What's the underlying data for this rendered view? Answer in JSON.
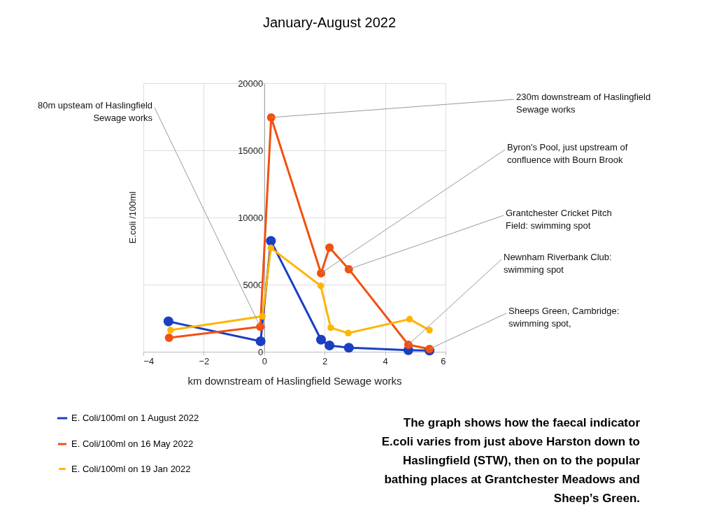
{
  "chart_data": {
    "type": "line",
    "title": "January-August 2022",
    "xlabel": "km downstream of Haslingfield Sewage works",
    "ylabel": "E.coli /100ml",
    "xlim": [
      -4,
      6
    ],
    "xticks": [
      -4,
      -2,
      0,
      2,
      4,
      6
    ],
    "ylim": [
      0,
      20000
    ],
    "yticks": [
      0,
      5000,
      10000,
      15000,
      20000
    ],
    "grid": true,
    "legend": "bottom",
    "marker": "circle",
    "line_style": "solid",
    "series": [
      {
        "name": "E. Coli/100ml on 1 August 2022",
        "color": "#1a3fc4",
        "x": [
          -3.17,
          -0.12,
          0.22,
          1.88,
          2.16,
          2.8,
          4.77,
          5.47
        ],
        "values": [
          2260,
          780,
          8250,
          900,
          470,
          300,
          120,
          90
        ]
      },
      {
        "name": "E. Coli/100ml on 16 May 2022",
        "color": "#f2500f",
        "x": [
          -3.15,
          -0.13,
          0.23,
          1.88,
          2.16,
          2.8,
          4.77,
          5.47
        ],
        "values": [
          1040,
          1860,
          17450,
          5850,
          7760,
          6150,
          520,
          210
        ]
      },
      {
        "name": "E. Coli/100ml on 19 Jan 2022",
        "color": "#ffb400",
        "x": [
          -3.1,
          -0.06,
          0.22,
          1.87,
          2.2,
          2.78,
          4.81,
          5.47
        ],
        "values": [
          1610,
          2640,
          7730,
          4910,
          1790,
          1390,
          2430,
          1610
        ]
      }
    ],
    "annotations": [
      {
        "text": "80m upsteam of Haslingfield Sewage works",
        "x": -0.13,
        "y": 1860
      },
      {
        "text": "230m downstream of Haslingfield Sewage works",
        "x": 0.23,
        "y": 17450
      },
      {
        "text": "Byron's Pool, just upstream of confluence with Bourn Brook",
        "x": 1.88,
        "y": 5850
      },
      {
        "text": "Grantchester Cricket Pitch Field: swimming spot",
        "x": 2.8,
        "y": 6150
      },
      {
        "text": "Newnham Riverbank Club: swimming spot",
        "x": 4.77,
        "y": 520
      },
      {
        "text": "Sheeps Green, Cambridge: swimming spot,",
        "x": 5.47,
        "y": 210
      },
      "The graph shows how the faecal indicator E.coli varies from just above Harston down to Haslingfield (STW), then on to the popular bathing places at Grantchester Meadows and Sheep’s Green."
    ]
  }
}
